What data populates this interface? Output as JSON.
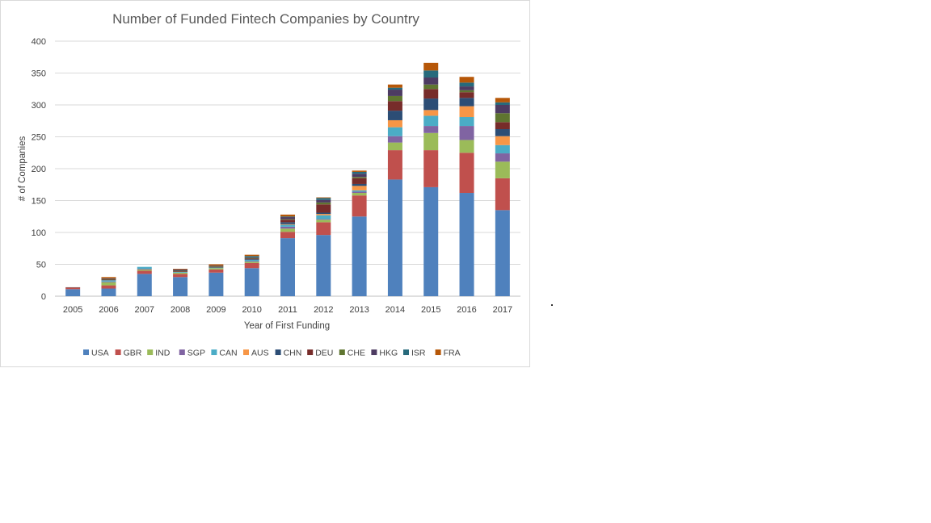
{
  "chart_data": {
    "type": "bar",
    "stacked": true,
    "title": "Number of Funded Fintech Companies by Country",
    "xlabel": "Year of First Funding",
    "ylabel": "# of Companies",
    "ylim": [
      0,
      400
    ],
    "yticks": [
      0,
      50,
      100,
      150,
      200,
      250,
      300,
      350,
      400
    ],
    "grid": true,
    "legend_position": "bottom",
    "categories": [
      "2005",
      "2006",
      "2007",
      "2008",
      "2009",
      "2010",
      "2011",
      "2012",
      "2013",
      "2014",
      "2015",
      "2016",
      "2017"
    ],
    "series": [
      {
        "name": "USA",
        "color": "#4f81bd",
        "values": [
          11,
          12,
          35,
          30,
          37,
          44,
          91,
          96,
          125,
          183,
          171,
          162,
          135
        ]
      },
      {
        "name": "GBR",
        "color": "#c0504d",
        "values": [
          2,
          5,
          5,
          5,
          5,
          8,
          10,
          20,
          33,
          46,
          58,
          63,
          50
        ]
      },
      {
        "name": "IND",
        "color": "#9bbb59",
        "values": [
          0,
          5,
          2,
          2,
          2,
          2,
          5,
          4,
          4,
          12,
          27,
          20,
          26
        ]
      },
      {
        "name": "SGP",
        "color": "#8064a2",
        "values": [
          0,
          1,
          1,
          0,
          0,
          1,
          3,
          1,
          2,
          10,
          11,
          22,
          13
        ]
      },
      {
        "name": "CAN",
        "color": "#4bacc6",
        "values": [
          0,
          2,
          3,
          1,
          1,
          2,
          3,
          6,
          2,
          14,
          16,
          14,
          13
        ]
      },
      {
        "name": "AUS",
        "color": "#f79646",
        "values": [
          0,
          0,
          0,
          0,
          0,
          0,
          1,
          2,
          7,
          11,
          9,
          17,
          14
        ]
      },
      {
        "name": "CHN",
        "color": "#2c4d75",
        "values": [
          0,
          0,
          0,
          0,
          0,
          1,
          3,
          2,
          3,
          15,
          18,
          13,
          11
        ]
      },
      {
        "name": "DEU",
        "color": "#772c2a",
        "values": [
          1,
          1,
          0,
          1,
          1,
          1,
          4,
          13,
          9,
          15,
          15,
          9,
          11
        ]
      },
      {
        "name": "CHE",
        "color": "#5f7530",
        "values": [
          0,
          1,
          0,
          1,
          1,
          1,
          1,
          3,
          2,
          8,
          7,
          3,
          14
        ]
      },
      {
        "name": "HKG",
        "color": "#4d3b62",
        "values": [
          0,
          1,
          0,
          2,
          1,
          1,
          3,
          4,
          5,
          10,
          11,
          6,
          13
        ]
      },
      {
        "name": "ISR",
        "color": "#276a7c",
        "values": [
          0,
          0,
          0,
          0,
          0,
          2,
          1,
          3,
          3,
          3,
          11,
          6,
          4
        ]
      },
      {
        "name": "FRA",
        "color": "#b65708",
        "values": [
          0,
          2,
          0,
          1,
          2,
          2,
          3,
          1,
          2,
          5,
          12,
          9,
          7
        ]
      }
    ]
  }
}
